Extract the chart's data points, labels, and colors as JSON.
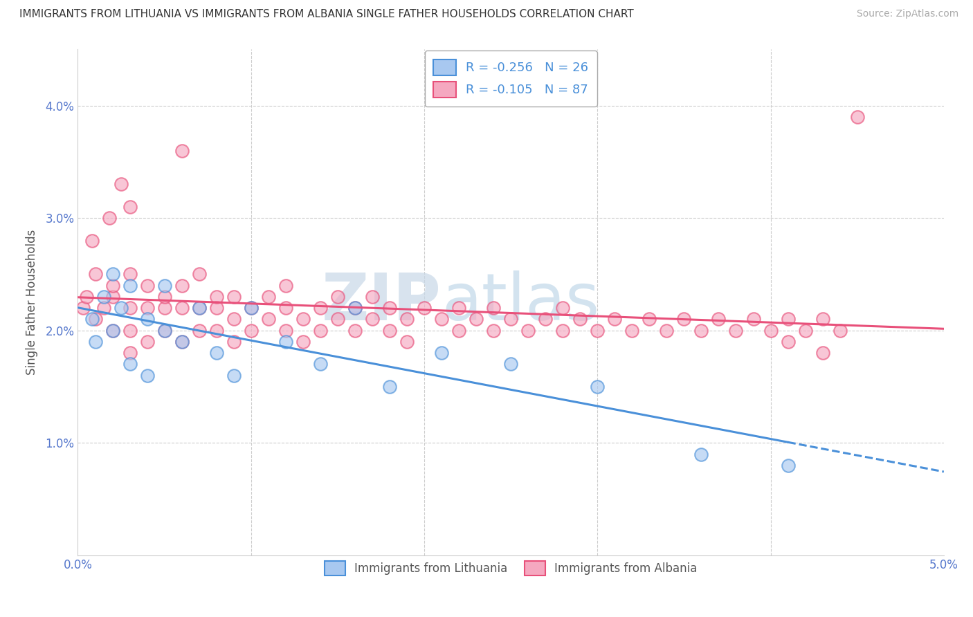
{
  "title": "IMMIGRANTS FROM LITHUANIA VS IMMIGRANTS FROM ALBANIA SINGLE FATHER HOUSEHOLDS CORRELATION CHART",
  "source": "Source: ZipAtlas.com",
  "ylabel": "Single Father Households",
  "xlabel": "",
  "xlim": [
    0.0,
    0.05
  ],
  "ylim": [
    0.0,
    0.045
  ],
  "xticks": [
    0.0,
    0.01,
    0.02,
    0.03,
    0.04,
    0.05
  ],
  "xticklabels": [
    "0.0%",
    "",
    "",
    "",
    "",
    "5.0%"
  ],
  "yticks": [
    0.0,
    0.01,
    0.02,
    0.03,
    0.04
  ],
  "yticklabels": [
    "",
    "1.0%",
    "2.0%",
    "3.0%",
    "4.0%"
  ],
  "legend_R1": "-0.256",
  "legend_N1": "26",
  "legend_R2": "-0.105",
  "legend_N2": "87",
  "legend_label1": "Immigrants from Lithuania",
  "legend_label2": "Immigrants from Albania",
  "color_lithuania": "#a8c8f0",
  "color_albania": "#f5a8c0",
  "trendline_color_lithuania": "#4a90d9",
  "trendline_color_albania": "#e8507a",
  "watermark_zip": "ZIP",
  "watermark_atlas": "atlas",
  "title_fontsize": 11,
  "source_fontsize": 10,
  "tick_fontsize": 12,
  "ylabel_fontsize": 12,
  "scatter_size": 180,
  "scatter_alpha": 0.65,
  "scatter_linewidth": 1.5,
  "trendline_linewidth": 2.2,
  "grid_color": "#cccccc",
  "tick_color": "#5577cc",
  "lith_x": [
    0.0008,
    0.001,
    0.0015,
    0.002,
    0.002,
    0.0025,
    0.003,
    0.003,
    0.004,
    0.004,
    0.005,
    0.005,
    0.006,
    0.007,
    0.008,
    0.009,
    0.01,
    0.012,
    0.014,
    0.016,
    0.018,
    0.021,
    0.025,
    0.03,
    0.036,
    0.041
  ],
  "lith_y": [
    0.021,
    0.019,
    0.023,
    0.02,
    0.025,
    0.022,
    0.017,
    0.024,
    0.021,
    0.016,
    0.02,
    0.024,
    0.019,
    0.022,
    0.018,
    0.016,
    0.022,
    0.019,
    0.017,
    0.022,
    0.015,
    0.018,
    0.017,
    0.015,
    0.009,
    0.008
  ],
  "alb_x": [
    0.0003,
    0.0005,
    0.001,
    0.001,
    0.0015,
    0.002,
    0.002,
    0.002,
    0.003,
    0.003,
    0.003,
    0.003,
    0.004,
    0.004,
    0.004,
    0.005,
    0.005,
    0.005,
    0.006,
    0.006,
    0.006,
    0.007,
    0.007,
    0.007,
    0.008,
    0.008,
    0.008,
    0.009,
    0.009,
    0.009,
    0.01,
    0.01,
    0.011,
    0.011,
    0.012,
    0.012,
    0.012,
    0.013,
    0.013,
    0.014,
    0.014,
    0.015,
    0.015,
    0.016,
    0.016,
    0.017,
    0.017,
    0.018,
    0.018,
    0.019,
    0.019,
    0.02,
    0.021,
    0.022,
    0.022,
    0.023,
    0.024,
    0.024,
    0.025,
    0.026,
    0.027,
    0.028,
    0.028,
    0.029,
    0.03,
    0.031,
    0.032,
    0.033,
    0.034,
    0.035,
    0.036,
    0.037,
    0.038,
    0.039,
    0.04,
    0.041,
    0.042,
    0.043,
    0.044,
    0.0008,
    0.0018,
    0.0025,
    0.003,
    0.006,
    0.041,
    0.043,
    0.045
  ],
  "alb_y": [
    0.022,
    0.023,
    0.021,
    0.025,
    0.022,
    0.023,
    0.02,
    0.024,
    0.022,
    0.02,
    0.025,
    0.018,
    0.022,
    0.024,
    0.019,
    0.022,
    0.023,
    0.02,
    0.022,
    0.024,
    0.019,
    0.022,
    0.02,
    0.025,
    0.022,
    0.02,
    0.023,
    0.021,
    0.019,
    0.023,
    0.022,
    0.02,
    0.021,
    0.023,
    0.022,
    0.02,
    0.024,
    0.021,
    0.019,
    0.022,
    0.02,
    0.021,
    0.023,
    0.022,
    0.02,
    0.021,
    0.023,
    0.022,
    0.02,
    0.021,
    0.019,
    0.022,
    0.021,
    0.02,
    0.022,
    0.021,
    0.02,
    0.022,
    0.021,
    0.02,
    0.021,
    0.02,
    0.022,
    0.021,
    0.02,
    0.021,
    0.02,
    0.021,
    0.02,
    0.021,
    0.02,
    0.021,
    0.02,
    0.021,
    0.02,
    0.021,
    0.02,
    0.021,
    0.02,
    0.028,
    0.03,
    0.033,
    0.031,
    0.036,
    0.019,
    0.018,
    0.039
  ],
  "trendline_lith_x0": 0.0,
  "trendline_lith_y0": 0.021,
  "trendline_lith_x1": 0.041,
  "trendline_lith_y1": 0.01,
  "trendline_lith_xdash": 0.041,
  "trendline_lith_xend": 0.05,
  "trendline_alb_x0": 0.0,
  "trendline_alb_y0": 0.021,
  "trendline_alb_x1": 0.05,
  "trendline_alb_y1": 0.018
}
